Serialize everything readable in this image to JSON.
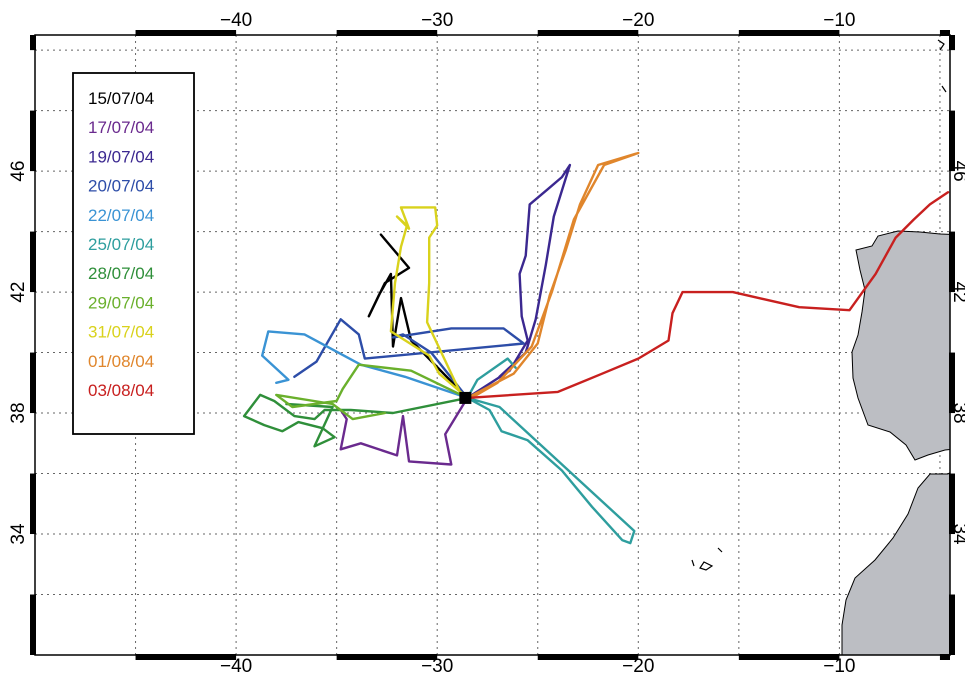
{
  "map": {
    "lon_range": [
      -50,
      -4.5
    ],
    "lat_range": [
      30,
      50.5
    ],
    "lon_ticks": [
      {
        "value": -40,
        "label": "−40"
      },
      {
        "value": -30,
        "label": "−30"
      },
      {
        "value": -20,
        "label": "−20"
      },
      {
        "value": -10,
        "label": "−10"
      }
    ],
    "lat_ticks": [
      {
        "value": 34,
        "label": "34"
      },
      {
        "value": 38,
        "label": "38"
      },
      {
        "value": 42,
        "label": "42"
      },
      {
        "value": 46,
        "label": "46"
      }
    ],
    "right_labels": [
      {
        "value": 46,
        "label": "46"
      },
      {
        "value": 42,
        "label": "42"
      },
      {
        "value": 38,
        "label": "38"
      },
      {
        "value": 34,
        "label": "34"
      }
    ],
    "grid_lon": [
      -45,
      -40,
      -35,
      -30,
      -25,
      -20,
      -15,
      -10,
      -5
    ],
    "grid_lat": [
      32,
      34,
      36,
      38,
      40,
      42,
      44,
      46,
      48,
      50
    ],
    "grid": true,
    "land_color": "#bcbec3",
    "launch_point": {
      "lon": -28.6,
      "lat": 38.5
    },
    "legend_position": "top-left"
  },
  "chart_data": {
    "type": "map-trajectories",
    "series": [
      {
        "name": "15/07/04",
        "color": "#000000",
        "path": [
          [
            -28.5,
            38.5
          ],
          [
            -31.3,
            40.4
          ],
          [
            -31.8,
            41.8
          ],
          [
            -32.2,
            40.2
          ],
          [
            -32.3,
            42.6
          ],
          [
            -32.9,
            41.9
          ],
          [
            -33.4,
            41.2
          ],
          [
            -32.6,
            42.3
          ],
          [
            -31.4,
            42.8
          ],
          [
            -32.8,
            43.9
          ]
        ]
      },
      {
        "name": "17/07/04",
        "color": "#6a2a8e",
        "path": [
          [
            -28.5,
            38.5
          ],
          [
            -29.6,
            37.3
          ],
          [
            -29.3,
            36.3
          ],
          [
            -31.4,
            36.4
          ],
          [
            -31.7,
            37.9
          ],
          [
            -32.0,
            36.6
          ],
          [
            -33.8,
            37.0
          ],
          [
            -34.8,
            36.8
          ],
          [
            -34.5,
            37.8
          ],
          [
            -34.8,
            38.1
          ]
        ]
      },
      {
        "name": "19/07/04",
        "color": "#3b2890",
        "path": [
          [
            -28.5,
            38.5
          ],
          [
            -26.4,
            39.4
          ],
          [
            -25.5,
            40.4
          ],
          [
            -25.8,
            41.2
          ],
          [
            -25.9,
            42.6
          ],
          [
            -25.6,
            43.2
          ],
          [
            -25.4,
            44.9
          ],
          [
            -24.5,
            45.4
          ],
          [
            -23.8,
            45.8
          ],
          [
            -23.4,
            46.2
          ],
          [
            -24.2,
            44.5
          ],
          [
            -24.6,
            42.9
          ],
          [
            -25.1,
            41.1
          ],
          [
            -25.6,
            40.0
          ],
          [
            -26.9,
            39.2
          ]
        ]
      },
      {
        "name": "20/07/04",
        "color": "#2d4da8",
        "path": [
          [
            -28.5,
            38.5
          ],
          [
            -30.3,
            40.0
          ],
          [
            -31.7,
            40.6
          ],
          [
            -32.2,
            40.5
          ],
          [
            -29.3,
            40.8
          ],
          [
            -26.7,
            40.8
          ],
          [
            -25.7,
            40.3
          ],
          [
            -33.6,
            39.8
          ],
          [
            -33.9,
            40.6
          ],
          [
            -34.8,
            41.1
          ],
          [
            -36.0,
            39.7
          ],
          [
            -37.1,
            39.2
          ]
        ]
      },
      {
        "name": "22/07/04",
        "color": "#3a93d4",
        "path": [
          [
            -28.5,
            38.5
          ],
          [
            -31.6,
            39.2
          ],
          [
            -33.8,
            39.6
          ],
          [
            -36.6,
            40.6
          ],
          [
            -38.4,
            40.7
          ],
          [
            -38.7,
            39.9
          ],
          [
            -37.4,
            39.1
          ],
          [
            -38.0,
            39.0
          ]
        ]
      },
      {
        "name": "25/07/04",
        "color": "#2e9e9e",
        "path": [
          [
            -28.5,
            38.5
          ],
          [
            -27.4,
            38.1
          ],
          [
            -26.8,
            37.4
          ],
          [
            -25.5,
            37.1
          ],
          [
            -23.8,
            36.1
          ],
          [
            -22.3,
            34.9
          ],
          [
            -20.8,
            33.8
          ],
          [
            -20.4,
            33.7
          ],
          [
            -20.2,
            34.1
          ],
          [
            -26.9,
            38.2
          ],
          [
            -28.5,
            38.5
          ],
          [
            -28.0,
            39.1
          ],
          [
            -26.5,
            39.8
          ],
          [
            -26.1,
            39.5
          ]
        ]
      },
      {
        "name": "28/07/04",
        "color": "#2f8f3a",
        "path": [
          [
            -28.5,
            38.5
          ],
          [
            -32.2,
            38.0
          ],
          [
            -34.3,
            38.1
          ],
          [
            -35.6,
            38.1
          ],
          [
            -36.1,
            37.8
          ],
          [
            -37.1,
            37.9
          ],
          [
            -38.1,
            38.4
          ],
          [
            -38.8,
            38.6
          ],
          [
            -39.6,
            37.9
          ],
          [
            -38.6,
            37.6
          ],
          [
            -37.7,
            37.4
          ],
          [
            -36.9,
            37.7
          ],
          [
            -35.7,
            37.5
          ],
          [
            -35.1,
            37.2
          ],
          [
            -36.1,
            36.9
          ],
          [
            -35.2,
            38.2
          ],
          [
            -37.5,
            38.3
          ]
        ]
      },
      {
        "name": "29/07/04",
        "color": "#6ab02c",
        "path": [
          [
            -28.5,
            38.5
          ],
          [
            -31.3,
            39.4
          ],
          [
            -33.9,
            39.6
          ],
          [
            -34.7,
            38.8
          ],
          [
            -35.0,
            38.4
          ],
          [
            -37.2,
            38.2
          ],
          [
            -38.0,
            38.6
          ],
          [
            -35.2,
            38.3
          ],
          [
            -34.2,
            37.8
          ],
          [
            -32.6,
            38.0
          ]
        ]
      },
      {
        "name": "31/07/04",
        "color": "#d9d21c",
        "path": [
          [
            -28.5,
            38.5
          ],
          [
            -29.9,
            39.3
          ],
          [
            -30.4,
            39.9
          ],
          [
            -32.3,
            40.7
          ],
          [
            -32.1,
            42.3
          ],
          [
            -31.8,
            43.5
          ],
          [
            -31.5,
            44.2
          ],
          [
            -32.0,
            44.5
          ],
          [
            -31.4,
            44.1
          ],
          [
            -31.8,
            44.8
          ],
          [
            -30.1,
            44.8
          ],
          [
            -30.0,
            44.2
          ],
          [
            -30.4,
            43.8
          ],
          [
            -30.4,
            42.3
          ],
          [
            -30.5,
            41.0
          ],
          [
            -28.8,
            38.6
          ]
        ]
      },
      {
        "name": "01/08/04",
        "color": "#e0862c",
        "path": [
          [
            -28.5,
            38.5
          ],
          [
            -26.2,
            39.3
          ],
          [
            -25.0,
            40.3
          ],
          [
            -24.4,
            41.9
          ],
          [
            -23.6,
            43.4
          ],
          [
            -22.9,
            44.9
          ],
          [
            -22.0,
            46.2
          ],
          [
            -20.0,
            46.6
          ],
          [
            -21.7,
            46.2
          ],
          [
            -23.2,
            44.4
          ],
          [
            -24.3,
            42.0
          ],
          [
            -25.3,
            40.2
          ],
          [
            -27.0,
            39.0
          ],
          [
            -28.3,
            38.5
          ]
        ]
      },
      {
        "name": "03/08/04",
        "color": "#c8201f",
        "path": [
          [
            -28.5,
            38.5
          ],
          [
            -24.0,
            38.7
          ],
          [
            -21.8,
            39.3
          ],
          [
            -20.0,
            39.8
          ],
          [
            -18.5,
            40.4
          ],
          [
            -18.3,
            41.3
          ],
          [
            -17.8,
            42.0
          ],
          [
            -15.3,
            42.0
          ],
          [
            -12.0,
            41.5
          ],
          [
            -9.5,
            41.4
          ],
          [
            -8.2,
            42.6
          ],
          [
            -7.2,
            43.8
          ],
          [
            -6.3,
            44.4
          ],
          [
            -5.5,
            44.9
          ],
          [
            -4.6,
            45.3
          ]
        ]
      }
    ]
  }
}
